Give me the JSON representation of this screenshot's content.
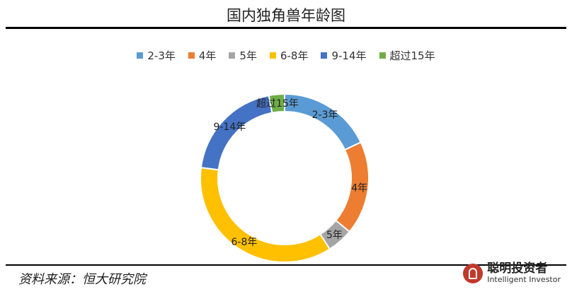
{
  "chart_data": {
    "type": "pie",
    "title": "国内独角兽年龄图",
    "donut": true,
    "legend_position": "top",
    "categories": [
      "2-3年",
      "4年",
      "5年",
      "6-8年",
      "9-14年",
      "超过15年"
    ],
    "values": [
      18,
      18,
      5,
      36,
      20,
      3
    ],
    "colors": [
      "#5B9BD5",
      "#ED7D31",
      "#A5A5A5",
      "#FFC000",
      "#4472C4",
      "#70AD47"
    ]
  },
  "source": "资料来源：恒大研究院",
  "brand": {
    "name_cn": "聪明投资者",
    "name_en": "Intelligent Investor"
  }
}
